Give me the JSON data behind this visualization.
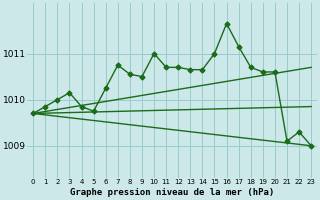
{
  "title": "Graphe pression niveau de la mer (hPa)",
  "bg_color": "#cce8e8",
  "grid_color": "#99cccc",
  "line_color": "#1a6b1a",
  "x_ticks": [
    0,
    1,
    2,
    3,
    4,
    5,
    6,
    7,
    8,
    9,
    10,
    11,
    12,
    13,
    14,
    15,
    16,
    17,
    18,
    19,
    20,
    21,
    22,
    23
  ],
  "y_ticks": [
    1009,
    1010,
    1011
  ],
  "ylim": [
    1008.3,
    1012.1
  ],
  "xlim": [
    -0.5,
    23.5
  ],
  "main_x": [
    0,
    1,
    2,
    3,
    4,
    5,
    6,
    7,
    8,
    9,
    10,
    11,
    12,
    13,
    14,
    15,
    16,
    17,
    18,
    19,
    20,
    21,
    22,
    23
  ],
  "main_y": [
    1009.7,
    1009.85,
    1010.0,
    1010.15,
    1009.85,
    1009.75,
    1010.25,
    1010.75,
    1010.55,
    1010.5,
    1011.0,
    1010.7,
    1010.7,
    1010.65,
    1010.65,
    1011.0,
    1011.65,
    1011.15,
    1010.7,
    1010.6,
    1010.6,
    1009.1,
    1009.3,
    1009.0
  ],
  "fan_lines": [
    {
      "x0": 0,
      "y0": 1009.7,
      "x1": 23,
      "y1": 1010.7
    },
    {
      "x0": 0,
      "y0": 1009.7,
      "x1": 23,
      "y1": 1009.85
    },
    {
      "x0": 0,
      "y0": 1009.7,
      "x1": 23,
      "y1": 1009.0
    }
  ],
  "xlabel_fontsize": 6.5,
  "ytick_fontsize": 6.5,
  "xtick_fontsize": 5.0,
  "linewidth": 1.0,
  "markersize": 2.5
}
